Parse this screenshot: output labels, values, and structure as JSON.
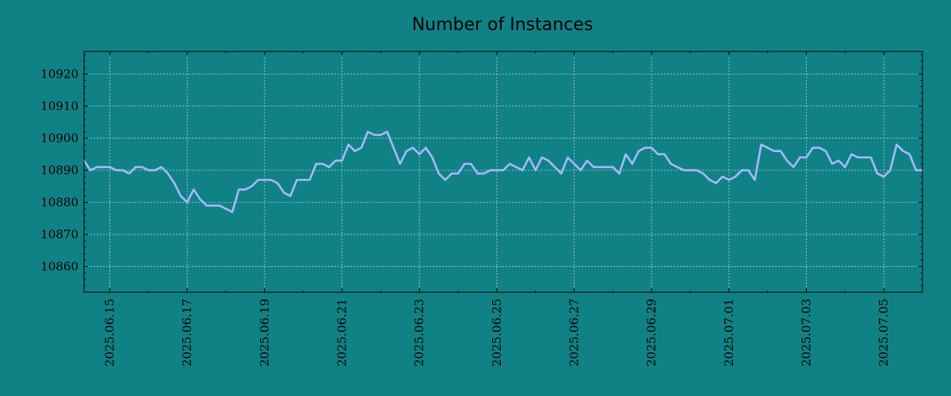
{
  "chart_data": {
    "type": "line",
    "title": "Number of Instances",
    "xlabel": "",
    "ylabel": "",
    "x_range": [
      "2025-06-14 08:00",
      "2025-07-06 00:00"
    ],
    "ylim": [
      10852,
      10927
    ],
    "grid": true,
    "colors": {
      "background": "#108286",
      "line": "#a6b8ff",
      "axis": "#000000",
      "grid": "#b5cfcf"
    },
    "y_ticks": [
      10860,
      10870,
      10880,
      10890,
      10900,
      10910,
      10920
    ],
    "x_ticks": [
      "2025.06.15",
      "2025.06.17",
      "2025.06.19",
      "2025.06.21",
      "2025.06.23",
      "2025.06.25",
      "2025.06.27",
      "2025.06.29",
      "2025.07.01",
      "2025.07.03",
      "2025.07.05"
    ],
    "series": [
      {
        "x": [
          "2025-06-14 08:00",
          "2025-06-14 12:00",
          "2025-06-14 16:00",
          "2025-06-14 20:00",
          "2025-06-15 00:00",
          "2025-06-15 04:00",
          "2025-06-15 08:00",
          "2025-06-15 12:00",
          "2025-06-15 16:00",
          "2025-06-15 20:00",
          "2025-06-16 00:00",
          "2025-06-16 04:00",
          "2025-06-16 08:00",
          "2025-06-16 12:00",
          "2025-06-16 16:00",
          "2025-06-16 20:00",
          "2025-06-17 00:00",
          "2025-06-17 04:00",
          "2025-06-17 08:00",
          "2025-06-17 12:00",
          "2025-06-17 16:00",
          "2025-06-17 20:00",
          "2025-06-18 00:00",
          "2025-06-18 04:00",
          "2025-06-18 08:00",
          "2025-06-18 12:00",
          "2025-06-18 16:00",
          "2025-06-18 20:00",
          "2025-06-19 00:00",
          "2025-06-19 04:00",
          "2025-06-19 08:00",
          "2025-06-19 12:00",
          "2025-06-19 16:00",
          "2025-06-19 20:00",
          "2025-06-20 00:00",
          "2025-06-20 04:00",
          "2025-06-20 08:00",
          "2025-06-20 12:00",
          "2025-06-20 16:00",
          "2025-06-20 20:00",
          "2025-06-21 00:00",
          "2025-06-21 04:00",
          "2025-06-21 08:00",
          "2025-06-21 12:00",
          "2025-06-21 16:00",
          "2025-06-21 20:00",
          "2025-06-22 00:00",
          "2025-06-22 04:00",
          "2025-06-22 08:00",
          "2025-06-22 12:00",
          "2025-06-22 16:00",
          "2025-06-22 20:00",
          "2025-06-23 00:00",
          "2025-06-23 04:00",
          "2025-06-23 08:00",
          "2025-06-23 12:00",
          "2025-06-23 16:00",
          "2025-06-23 20:00",
          "2025-06-24 00:00",
          "2025-06-24 04:00",
          "2025-06-24 08:00",
          "2025-06-24 12:00",
          "2025-06-24 16:00",
          "2025-06-24 20:00",
          "2025-06-25 00:00",
          "2025-06-25 04:00",
          "2025-06-25 08:00",
          "2025-06-25 12:00",
          "2025-06-25 16:00",
          "2025-06-25 20:00",
          "2025-06-26 00:00",
          "2025-06-26 04:00",
          "2025-06-26 08:00",
          "2025-06-26 12:00",
          "2025-06-26 16:00",
          "2025-06-26 20:00",
          "2025-06-27 00:00",
          "2025-06-27 04:00",
          "2025-06-27 08:00",
          "2025-06-27 12:00",
          "2025-06-27 16:00",
          "2025-06-27 20:00",
          "2025-06-28 00:00",
          "2025-06-28 04:00",
          "2025-06-28 08:00",
          "2025-06-28 12:00",
          "2025-06-28 16:00",
          "2025-06-28 20:00",
          "2025-06-29 00:00",
          "2025-06-29 04:00",
          "2025-06-29 08:00",
          "2025-06-29 12:00",
          "2025-06-29 16:00",
          "2025-06-29 20:00",
          "2025-06-30 00:00",
          "2025-06-30 04:00",
          "2025-06-30 08:00",
          "2025-06-30 12:00",
          "2025-06-30 16:00",
          "2025-06-30 20:00",
          "2025-07-01 00:00",
          "2025-07-01 04:00",
          "2025-07-01 08:00",
          "2025-07-01 12:00",
          "2025-07-01 16:00",
          "2025-07-01 20:00",
          "2025-07-02 00:00",
          "2025-07-02 04:00",
          "2025-07-02 08:00",
          "2025-07-02 12:00",
          "2025-07-02 16:00",
          "2025-07-02 20:00",
          "2025-07-03 00:00",
          "2025-07-03 04:00",
          "2025-07-03 08:00",
          "2025-07-03 12:00",
          "2025-07-03 16:00",
          "2025-07-03 20:00",
          "2025-07-04 00:00",
          "2025-07-04 04:00",
          "2025-07-04 08:00",
          "2025-07-04 12:00",
          "2025-07-04 16:00",
          "2025-07-04 20:00",
          "2025-07-05 00:00",
          "2025-07-05 04:00",
          "2025-07-05 08:00",
          "2025-07-05 12:00",
          "2025-07-05 16:00",
          "2025-07-05 20:00",
          "2025-07-06 00:00"
        ],
        "values": [
          10893,
          10890,
          10891,
          10891,
          10891,
          10890,
          10890,
          10889,
          10891,
          10891,
          10890,
          10890,
          10891,
          10889,
          10886,
          10882,
          10880,
          10884,
          10881,
          10879,
          10879,
          10879,
          10878,
          10877,
          10884,
          10884,
          10885,
          10887,
          10887,
          10887,
          10886,
          10883,
          10882,
          10887,
          10887,
          10887,
          10892,
          10892,
          10891,
          10893,
          10893,
          10898,
          10896,
          10897,
          10902,
          10901,
          10901,
          10902,
          10897,
          10892,
          10896,
          10897,
          10895,
          10897,
          10894,
          10889,
          10887,
          10889,
          10889,
          10892,
          10892,
          10889,
          10889,
          10890,
          10890,
          10890,
          10892,
          10891,
          10890,
          10894,
          10890,
          10894,
          10893,
          10891,
          10889,
          10894,
          10892,
          10890,
          10893,
          10891,
          10891,
          10891,
          10891,
          10889,
          10895,
          10892,
          10896,
          10897,
          10897,
          10895,
          10895,
          10892,
          10891,
          10890,
          10890,
          10890,
          10889,
          10887,
          10886,
          10888,
          10887,
          10888,
          10890,
          10890,
          10887,
          10898,
          10897,
          10896,
          10896,
          10893,
          10891,
          10894,
          10894,
          10897,
          10897,
          10896,
          10892,
          10893,
          10891,
          10895,
          10894,
          10894,
          10894,
          10889,
          10888,
          10890,
          10898,
          10896,
          10895,
          10890,
          10890
        ]
      }
    ]
  }
}
